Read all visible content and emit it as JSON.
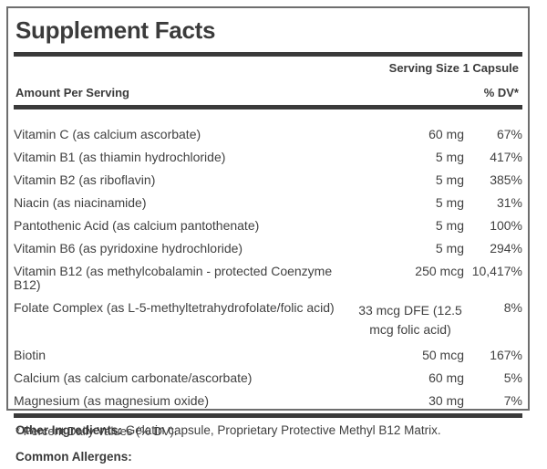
{
  "label": {
    "title": "Supplement Facts",
    "serving_size": "Serving Size 1 Capsule",
    "column_headers": {
      "amount": "Amount Per Serving",
      "dv": "% DV*"
    },
    "rows": [
      {
        "name": "Vitamin C (as calcium ascorbate)",
        "amount": "60 mg",
        "dv": "67%"
      },
      {
        "name": "Vitamin B1 (as thiamin hydrochloride)",
        "amount": "5 mg",
        "dv": "417%"
      },
      {
        "name": "Vitamin B2 (as riboflavin)",
        "amount": "5 mg",
        "dv": "385%"
      },
      {
        "name": "Niacin (as niacinamide)",
        "amount": "5 mg",
        "dv": "31%"
      },
      {
        "name": "Pantothenic Acid (as calcium pantothenate)",
        "amount": "5 mg",
        "dv": "100%"
      },
      {
        "name": "Vitamin B6 (as pyridoxine hydrochloride)",
        "amount": "5 mg",
        "dv": "294%"
      },
      {
        "name": "Vitamin B12 (as methylcobalamin - protected Coenzyme B12)",
        "amount": "250 mcg",
        "dv": "10,417%"
      },
      {
        "name": "Folate Complex (as L-5-methyltetrahydrofolate/folic acid)",
        "amount": "33 mcg DFE (12.5 mcg folic acid)",
        "dv": "8%",
        "amount_wrap": true
      },
      {
        "name": "Biotin",
        "amount": "50 mcg",
        "dv": "167%"
      },
      {
        "name": "Calcium (as calcium carbonate/ascorbate)",
        "amount": "60 mg",
        "dv": "5%"
      },
      {
        "name": "Magnesium (as magnesium oxide)",
        "amount": "30 mg",
        "dv": "7%"
      }
    ],
    "footnote": "* Percent Daily Values (% DV).",
    "other_ingredients_label": "Other Ingredients:",
    "other_ingredients_text": " Gelatin capsule, Proprietary Protective Methyl B12 Matrix.",
    "common_allergens_label": "Common Allergens:"
  },
  "colors": {
    "background": "#ffffff",
    "text": "#3e3e3e",
    "heading_text": "#3b3b3b",
    "thick_rule": "#3a3a3a",
    "box_border": "#6e6e6e"
  }
}
